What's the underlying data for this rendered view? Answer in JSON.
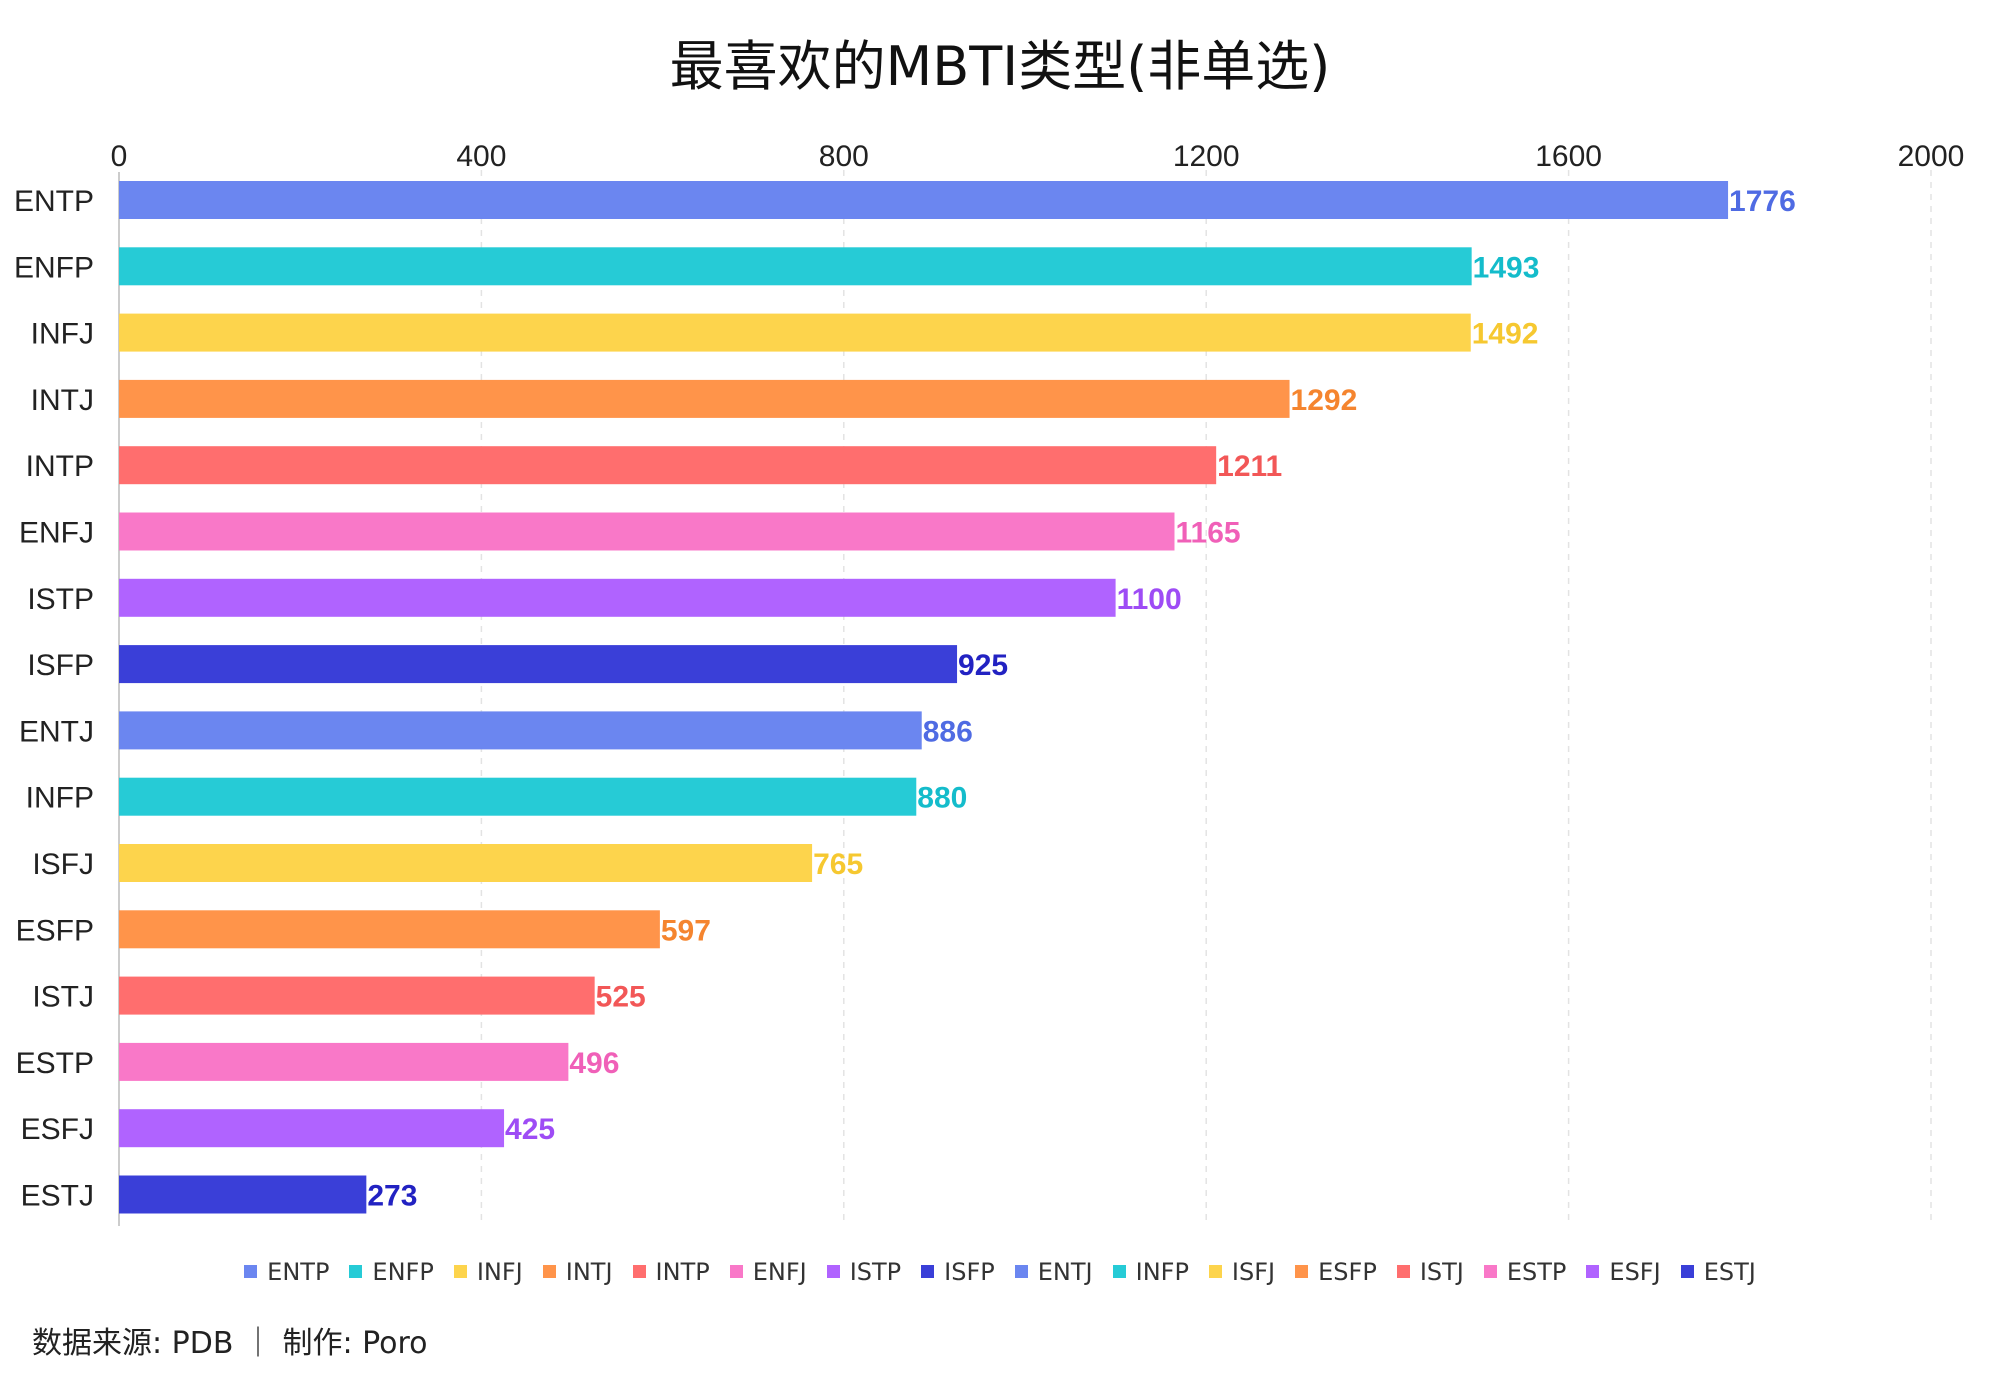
{
  "chart_data": {
    "type": "bar",
    "orientation": "horizontal",
    "title": "最喜欢的MBTI类型(非单选)",
    "categories": [
      "ENTP",
      "ENFP",
      "INFJ",
      "INTJ",
      "INTP",
      "ENFJ",
      "ISTP",
      "ISFP",
      "ENTJ",
      "INFP",
      "ISFJ",
      "ESFP",
      "ISTJ",
      "ESTP",
      "ESFJ",
      "ESTJ"
    ],
    "values": [
      1776,
      1493,
      1492,
      1292,
      1211,
      1165,
      1100,
      925,
      886,
      880,
      765,
      597,
      525,
      496,
      425,
      273
    ],
    "colors": [
      "#6b86f0",
      "#26cbd6",
      "#fdd44c",
      "#ff944a",
      "#ff6e6e",
      "#f978c8",
      "#b063ff",
      "#3a3fd8",
      "#6b86f0",
      "#26cbd6",
      "#fdd44c",
      "#ff944a",
      "#ff6e6e",
      "#f978c8",
      "#b063ff",
      "#3a3fd8"
    ],
    "label_colors": [
      "#4f6be3",
      "#14bccb",
      "#f6c830",
      "#f5852f",
      "#f25757",
      "#f060b8",
      "#9e4cf5",
      "#2222c2",
      "#4f6be3",
      "#14bccb",
      "#f6c830",
      "#f5852f",
      "#f25757",
      "#f060b8",
      "#9e4cf5",
      "#2222c2"
    ],
    "xlim": [
      0,
      2000
    ],
    "xticks": [
      "0",
      "400",
      "800",
      "1200",
      "1600",
      "2000"
    ],
    "xtick_values": [
      0,
      400,
      800,
      1200,
      1600,
      2000
    ],
    "axis_position": "top",
    "grid": "vertical dashed",
    "legend_position": "bottom",
    "xlabel": "",
    "ylabel": ""
  },
  "footer": "数据来源: PDB ｜ 制作: Poro"
}
